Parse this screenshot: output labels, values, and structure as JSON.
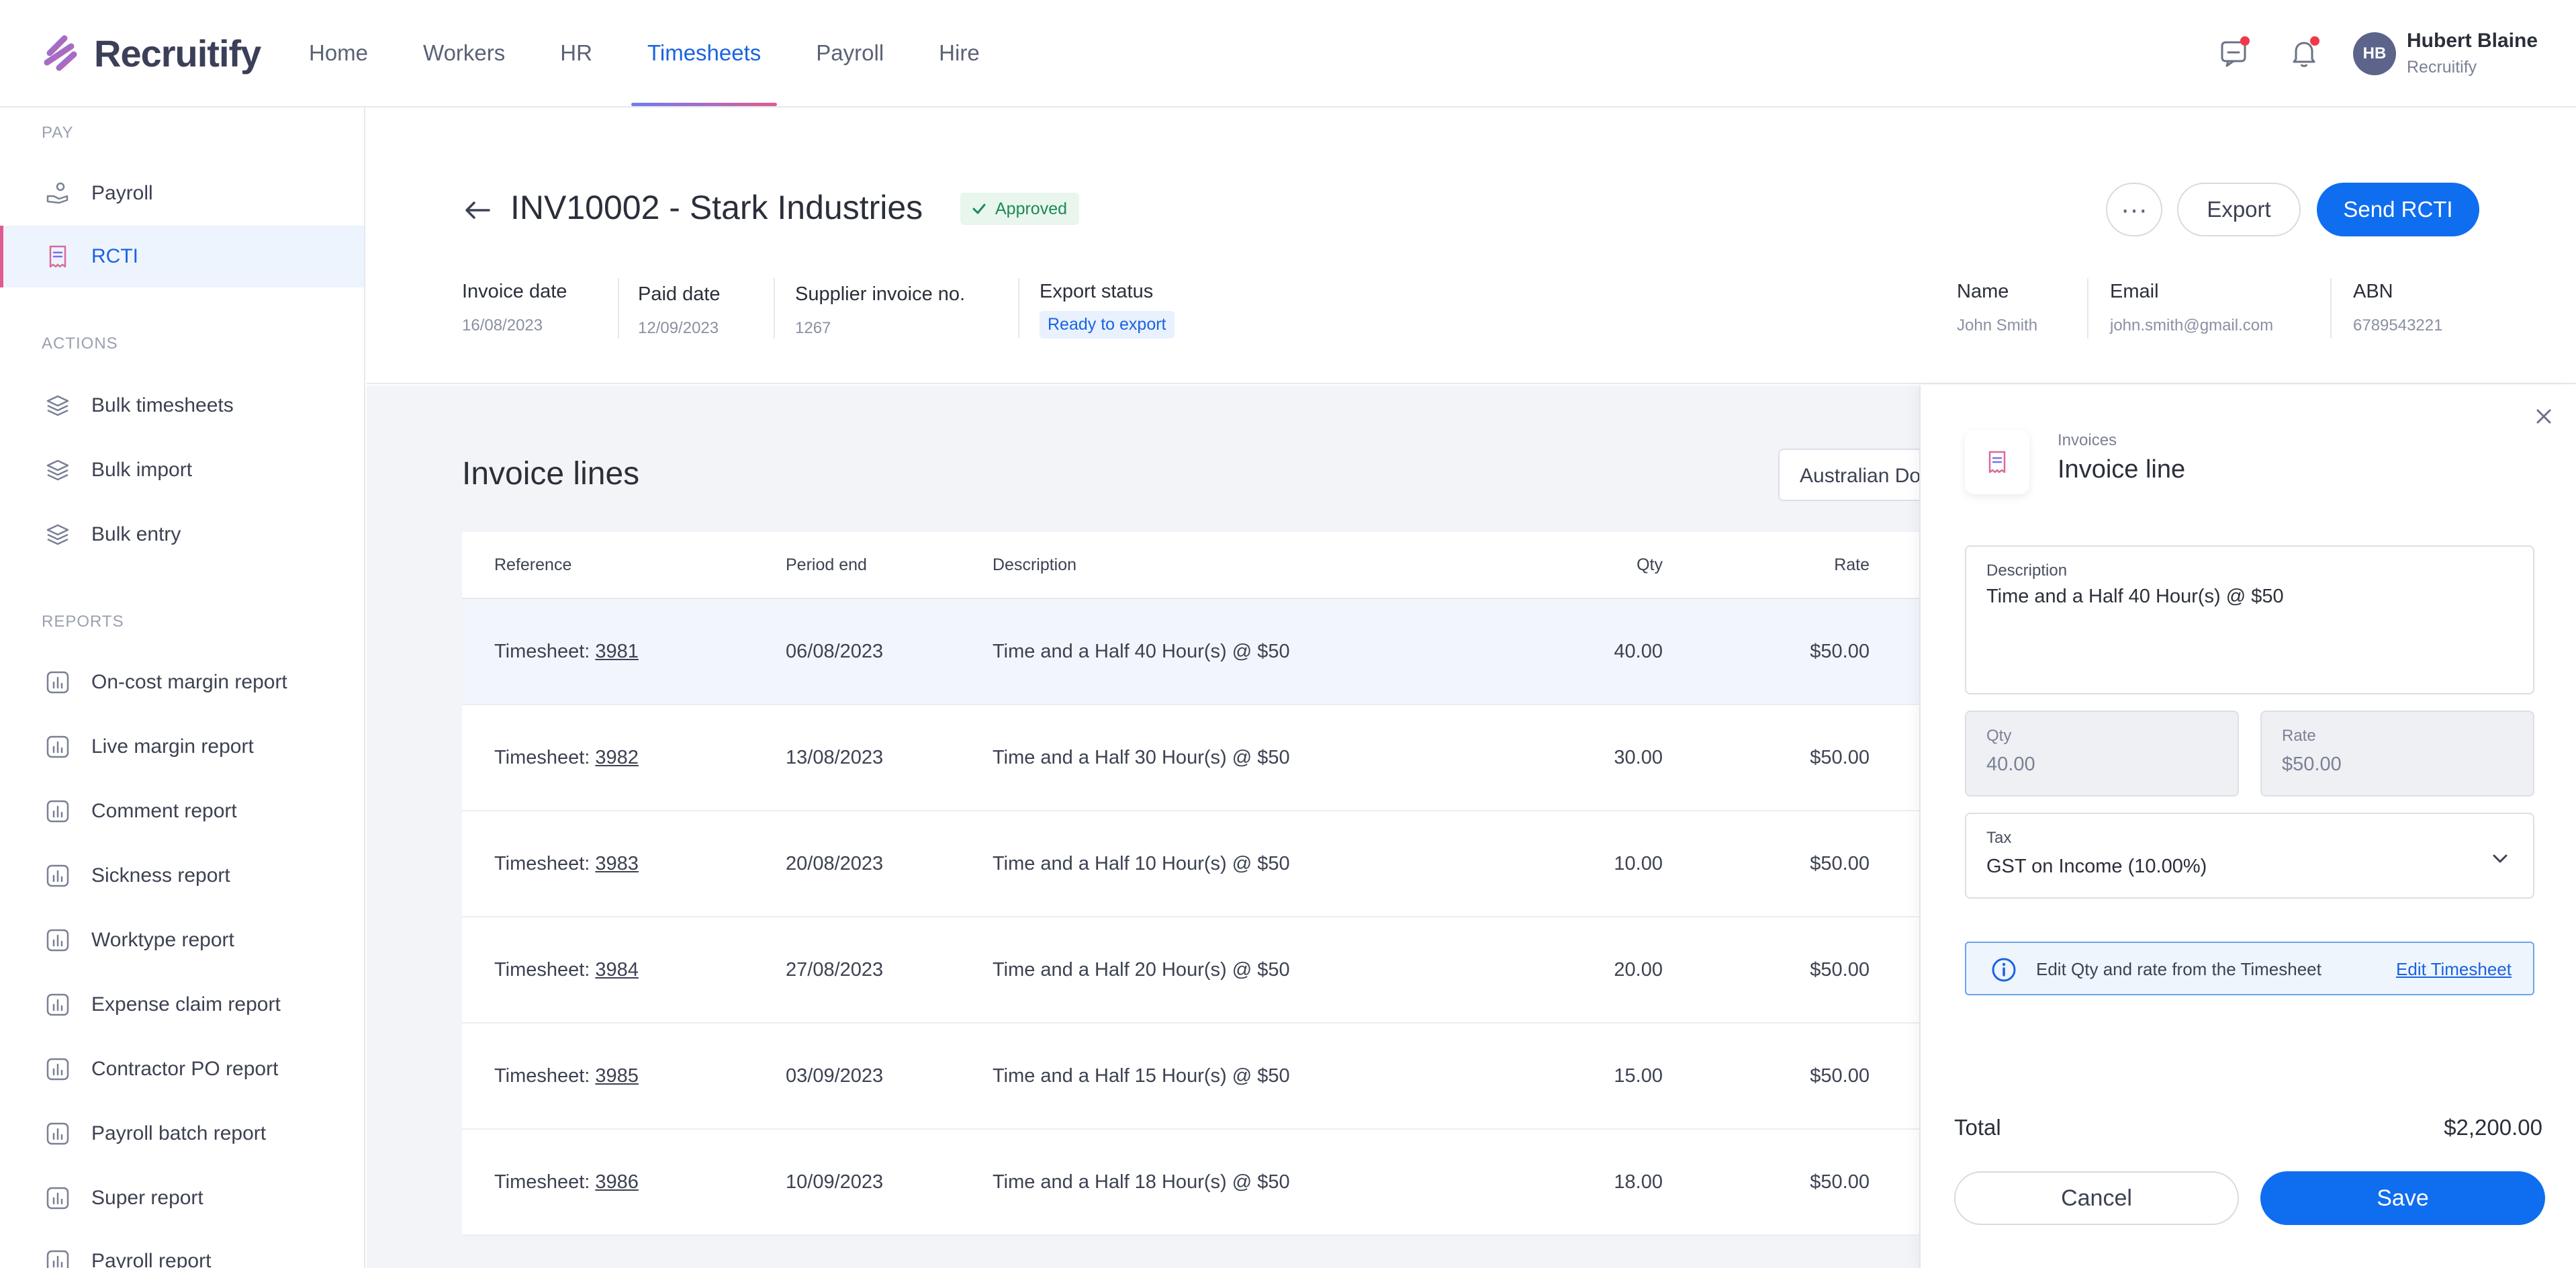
{
  "app": {
    "name": "Recruitify",
    "accent": "#0f6df0",
    "brand_gradient": [
      "#6f7cf7",
      "#e05b8f"
    ]
  },
  "nav": {
    "items": [
      {
        "label": "Home"
      },
      {
        "label": "Workers"
      },
      {
        "label": "HR"
      },
      {
        "label": "Timesheets",
        "active": true
      },
      {
        "label": "Payroll"
      },
      {
        "label": "Hire"
      }
    ]
  },
  "user": {
    "initials": "HB",
    "name": "Hubert Blaine",
    "org": "Recruitify"
  },
  "sidebar": {
    "pay_title": "PAY",
    "pay_items": [
      {
        "label": "Payroll",
        "icon": "payroll-icon"
      },
      {
        "label": "RCTI",
        "icon": "receipt-icon",
        "active": true
      }
    ],
    "actions_title": "ACTIONS",
    "action_items": [
      {
        "label": "Bulk timesheets"
      },
      {
        "label": "Bulk import"
      },
      {
        "label": "Bulk entry"
      }
    ],
    "reports_title": "REPORTS",
    "report_items": [
      {
        "label": "On-cost margin report"
      },
      {
        "label": "Live margin report"
      },
      {
        "label": "Comment report"
      },
      {
        "label": "Sickness report"
      },
      {
        "label": "Worktype report"
      },
      {
        "label": "Expense claim report"
      },
      {
        "label": "Contractor PO report"
      },
      {
        "label": "Payroll batch report"
      },
      {
        "label": "Super report"
      },
      {
        "label": "Payroll report"
      }
    ]
  },
  "invoice": {
    "title": "INV10002 - Stark Industries",
    "status": "Approved",
    "actions": {
      "more": "···",
      "export": "Export",
      "send": "Send RCTI"
    },
    "meta": {
      "invoice_date_label": "Invoice date",
      "invoice_date": "16/08/2023",
      "paid_date_label": "Paid date",
      "paid_date": "12/09/2023",
      "supplier_no_label": "Supplier invoice no.",
      "supplier_no": "1267",
      "export_status_label": "Export status",
      "export_status": "Ready to export",
      "name_label": "Name",
      "name": "John Smith",
      "email_label": "Email",
      "email": "john.smith@gmail.com",
      "abn_label": "ABN",
      "abn": "6789543221"
    }
  },
  "lines": {
    "title": "Invoice lines",
    "currency": "Australian Dollar",
    "columns": {
      "reference": "Reference",
      "period_end": "Period end",
      "description": "Description",
      "qty": "Qty",
      "rate": "Rate"
    },
    "ref_prefix": "Timesheet:",
    "rows": [
      {
        "ref": "3981",
        "period_end": "06/08/2023",
        "description": "Time and a Half 40 Hour(s) @ $50",
        "qty": "40.00",
        "rate": "$50.00"
      },
      {
        "ref": "3982",
        "period_end": "13/08/2023",
        "description": "Time and a Half 30 Hour(s) @ $50",
        "qty": "30.00",
        "rate": "$50.00"
      },
      {
        "ref": "3983",
        "period_end": "20/08/2023",
        "description": "Time and a Half 10 Hour(s) @ $50",
        "qty": "10.00",
        "rate": "$50.00"
      },
      {
        "ref": "3984",
        "period_end": "27/08/2023",
        "description": "Time and a Half 20 Hour(s) @ $50",
        "qty": "20.00",
        "rate": "$50.00"
      },
      {
        "ref": "3985",
        "period_end": "03/09/2023",
        "description": "Time and a Half 15 Hour(s) @ $50",
        "qty": "15.00",
        "rate": "$50.00"
      },
      {
        "ref": "3986",
        "period_end": "10/09/2023",
        "description": "Time and a Half 18 Hour(s) @ $50",
        "qty": "18.00",
        "rate": "$50.00"
      }
    ]
  },
  "panel": {
    "subtitle": "Invoices",
    "title": "Invoice line",
    "description_label": "Description",
    "description_value": "Time and a Half 40 Hour(s) @ $50",
    "qty_label": "Qty",
    "qty_value": "40.00",
    "rate_label": "Rate",
    "rate_value": "$50.00",
    "tax_label": "Tax",
    "tax_value": "GST on Income (10.00%)",
    "info_text": "Edit Qty and rate from the Timesheet",
    "info_link": "Edit Timesheet",
    "total_label": "Total",
    "total_value": "$2,200.00",
    "cancel": "Cancel",
    "save": "Save"
  }
}
